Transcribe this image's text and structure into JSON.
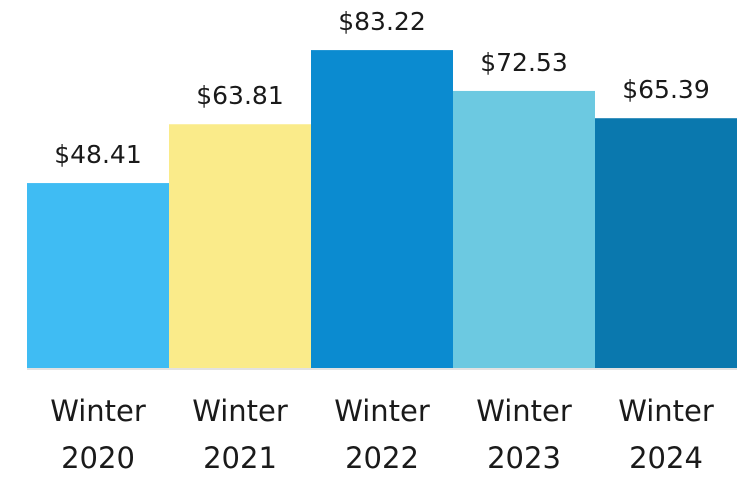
{
  "chart_data": {
    "type": "bar",
    "categories": [
      "Winter 2020",
      "Winter 2021",
      "Winter 2022",
      "Winter 2023",
      "Winter 2024"
    ],
    "values": [
      48.41,
      63.81,
      83.22,
      72.53,
      65.39
    ],
    "value_labels": [
      "$48.41",
      "$63.81",
      "$83.22",
      "$72.53",
      "$65.39"
    ],
    "colors": [
      "#3fbcf3",
      "#faeb8a",
      "#0b8bd0",
      "#6cc9e1",
      "#0a78ae"
    ]
  }
}
